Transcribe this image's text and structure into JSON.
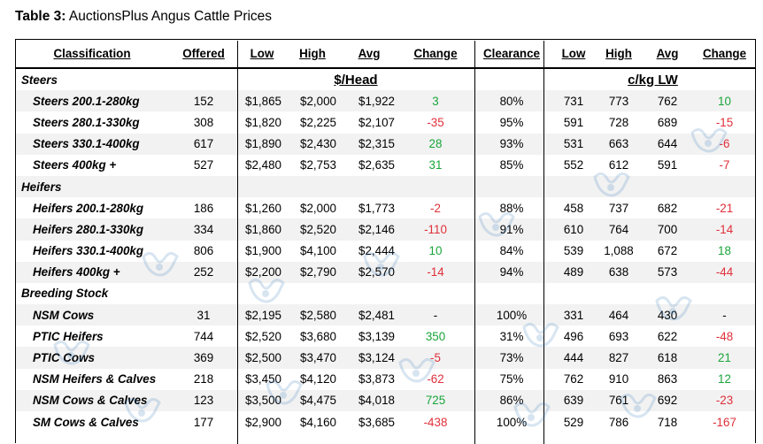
{
  "caption": {
    "label": "Table 3:",
    "title": "AuctionsPlus Angus Cattle Prices"
  },
  "headers": {
    "classification": "Classification",
    "offered": "Offered",
    "low": "Low",
    "high": "High",
    "avg": "Avg",
    "change": "Change",
    "clearance": "Clearance",
    "low2": "Low",
    "high2": "High",
    "avg2": "Avg",
    "change2": "Change"
  },
  "units": {
    "head": "$/Head",
    "lw": "c/kg LW"
  },
  "groups": {
    "steers": "Steers",
    "heifers": "Heifers",
    "breeding": "Breeding Stock"
  },
  "rows": [
    {
      "name": "Steers 200.1-280kg",
      "offered": "152",
      "low": "$1,865",
      "high": "$2,000",
      "avg": "$1,922",
      "change": "3",
      "clearance": "80%",
      "low2": "731",
      "high2": "773",
      "avg2": "762",
      "change2": "10"
    },
    {
      "name": "Steers 280.1-330kg",
      "offered": "308",
      "low": "$1,820",
      "high": "$2,225",
      "avg": "$2,107",
      "change": "-35",
      "clearance": "95%",
      "low2": "591",
      "high2": "728",
      "avg2": "689",
      "change2": "-15"
    },
    {
      "name": "Steers 330.1-400kg",
      "offered": "617",
      "low": "$1,890",
      "high": "$2,430",
      "avg": "$2,315",
      "change": "28",
      "clearance": "93%",
      "low2": "531",
      "high2": "663",
      "avg2": "644",
      "change2": "-6"
    },
    {
      "name": "Steers 400kg +",
      "offered": "527",
      "low": "$2,480",
      "high": "$2,753",
      "avg": "$2,635",
      "change": "31",
      "clearance": "85%",
      "low2": "552",
      "high2": "612",
      "avg2": "591",
      "change2": "-7"
    },
    {
      "name": "Heifers 200.1-280kg",
      "offered": "186",
      "low": "$1,260",
      "high": "$2,000",
      "avg": "$1,773",
      "change": "-2",
      "clearance": "88%",
      "low2": "458",
      "high2": "737",
      "avg2": "682",
      "change2": "-21"
    },
    {
      "name": "Heifers 280.1-330kg",
      "offered": "334",
      "low": "$1,860",
      "high": "$2,520",
      "avg": "$2,146",
      "change": "-110",
      "clearance": "91%",
      "low2": "610",
      "high2": "764",
      "avg2": "700",
      "change2": "-14"
    },
    {
      "name": "Heifers 330.1-400kg",
      "offered": "806",
      "low": "$1,900",
      "high": "$4,100",
      "avg": "$2,444",
      "change": "10",
      "clearance": "84%",
      "low2": "539",
      "high2": "1,088",
      "avg2": "672",
      "change2": "18"
    },
    {
      "name": "Heifers 400kg +",
      "offered": "252",
      "low": "$2,200",
      "high": "$2,790",
      "avg": "$2,570",
      "change": "-14",
      "clearance": "94%",
      "low2": "489",
      "high2": "638",
      "avg2": "573",
      "change2": "-44"
    },
    {
      "name": "NSM Cows",
      "offered": "31",
      "low": "$2,195",
      "high": "$2,580",
      "avg": "$2,481",
      "change": "-",
      "clearance": "100%",
      "low2": "331",
      "high2": "464",
      "avg2": "430",
      "change2": "-"
    },
    {
      "name": "PTIC Heifers",
      "offered": "744",
      "low": "$2,520",
      "high": "$3,680",
      "avg": "$3,139",
      "change": "350",
      "clearance": "31%",
      "low2": "496",
      "high2": "693",
      "avg2": "622",
      "change2": "-48"
    },
    {
      "name": "PTIC Cows",
      "offered": "369",
      "low": "$2,500",
      "high": "$3,470",
      "avg": "$3,124",
      "change": "-5",
      "clearance": "73%",
      "low2": "444",
      "high2": "827",
      "avg2": "618",
      "change2": "21"
    },
    {
      "name": "NSM Heifers & Calves",
      "offered": "218",
      "low": "$3,450",
      "high": "$4,120",
      "avg": "$3,873",
      "change": "-62",
      "clearance": "75%",
      "low2": "762",
      "high2": "910",
      "avg2": "863",
      "change2": "12"
    },
    {
      "name": "NSM Cows & Calves",
      "offered": "123",
      "low": "$3,500",
      "high": "$4,475",
      "avg": "$4,018",
      "change": "725",
      "clearance": "86%",
      "low2": "639",
      "high2": "761",
      "avg2": "692",
      "change2": "-23"
    },
    {
      "name": "SM Cows & Calves",
      "offered": "177",
      "low": "$2,900",
      "high": "$4,160",
      "avg": "$3,685",
      "change": "-438",
      "clearance": "100%",
      "low2": "529",
      "high2": "786",
      "avg2": "718",
      "change2": "-167"
    }
  ],
  "colors": {
    "positive": "#1aa53a",
    "negative": "#e0303a",
    "zebra": "#f2f2f2"
  },
  "watermark_icon": "cattle-logo-icon"
}
